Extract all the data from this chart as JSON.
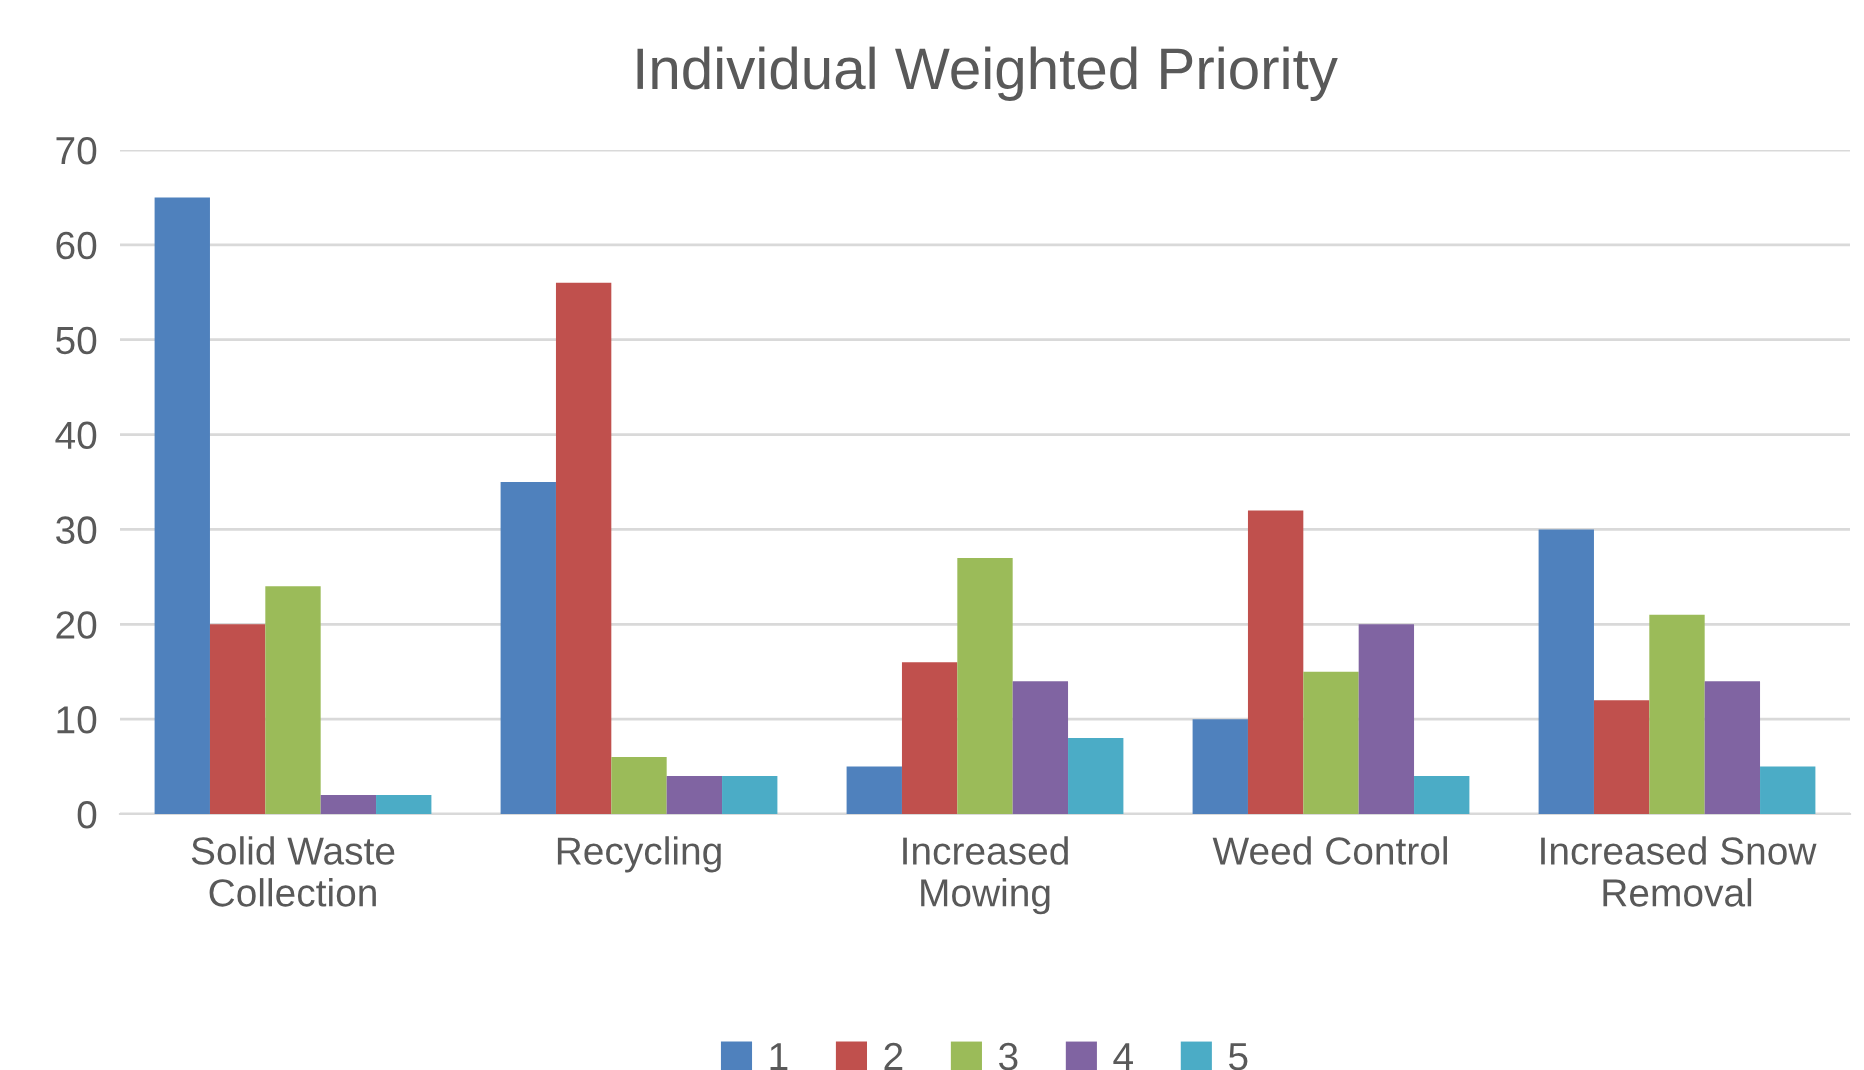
{
  "chart_data": {
    "type": "bar",
    "title": "Individual Weighted Priority",
    "categories": [
      "Solid Waste\nCollection",
      "Recycling",
      "Increased\nMowing",
      "Weed Control",
      "Increased Snow\nRemoval"
    ],
    "series": [
      {
        "name": "1",
        "color": "#4f81bd",
        "values": [
          65,
          35,
          5,
          10,
          30
        ]
      },
      {
        "name": "2",
        "color": "#c0504d",
        "values": [
          20,
          56,
          16,
          32,
          12
        ]
      },
      {
        "name": "3",
        "color": "#9bbb59",
        "values": [
          24,
          6,
          27,
          15,
          21
        ]
      },
      {
        "name": "4",
        "color": "#8064a2",
        "values": [
          2,
          4,
          14,
          20,
          14
        ]
      },
      {
        "name": "5",
        "color": "#4bacc6",
        "values": [
          2,
          4,
          8,
          4,
          5
        ]
      }
    ],
    "ylim": [
      0,
      70
    ],
    "yticks": [
      0,
      10,
      20,
      30,
      40,
      50,
      60,
      70
    ],
    "grid": "y",
    "legend": "bottom"
  }
}
